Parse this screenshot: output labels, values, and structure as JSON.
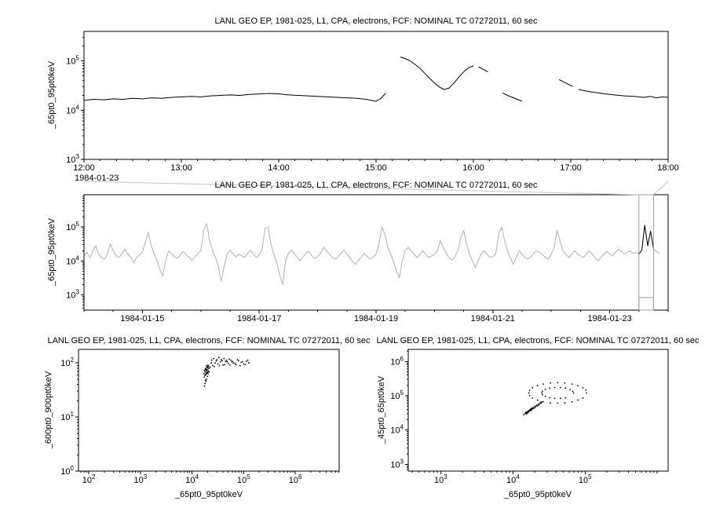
{
  "colors": {
    "background": "#ffffff",
    "axis": "#000000",
    "series_black": "#000000",
    "series_gray": "#b0b0b0",
    "connector_gray": "#c4c4c4",
    "selection_gray": "#9e9e9e"
  },
  "chart_data": [
    {
      "type": "line",
      "title": "LANL GEO EP, 1981-025, L1, CPA, electrons, FCF: NOMINAL TC 07272011, 60 sec",
      "ylabel": "_65pt0_95pt0keV",
      "context_label": "1984-01-23",
      "xlim": [
        12,
        18
      ],
      "ylim_log10": [
        3.0,
        5.6
      ],
      "yticks_log10": [
        3,
        4,
        5
      ],
      "xticks": [
        {
          "v": 12,
          "label": "12:00"
        },
        {
          "v": 13,
          "label": "13:00"
        },
        {
          "v": 14,
          "label": "14:00"
        },
        {
          "v": 15,
          "label": "15:00"
        },
        {
          "v": 16,
          "label": "16:00"
        },
        {
          "v": 17,
          "label": "17:00"
        },
        {
          "v": 18,
          "label": "18:00"
        }
      ],
      "segments": [
        [
          [
            12.0,
            4.2
          ],
          [
            12.1,
            4.22
          ],
          [
            12.2,
            4.21
          ],
          [
            12.3,
            4.23
          ],
          [
            12.4,
            4.22
          ],
          [
            12.5,
            4.24
          ],
          [
            12.6,
            4.23
          ],
          [
            12.7,
            4.25
          ],
          [
            12.8,
            4.24
          ],
          [
            12.9,
            4.26
          ],
          [
            13.0,
            4.27
          ],
          [
            13.1,
            4.28
          ],
          [
            13.2,
            4.27
          ],
          [
            13.3,
            4.29
          ],
          [
            13.4,
            4.3
          ],
          [
            13.5,
            4.31
          ],
          [
            13.6,
            4.3
          ],
          [
            13.7,
            4.32
          ],
          [
            13.8,
            4.33
          ],
          [
            13.9,
            4.34
          ],
          [
            14.0,
            4.33
          ],
          [
            14.1,
            4.31
          ],
          [
            14.2,
            4.3
          ],
          [
            14.3,
            4.29
          ],
          [
            14.4,
            4.28
          ],
          [
            14.5,
            4.27
          ],
          [
            14.6,
            4.26
          ],
          [
            14.7,
            4.25
          ],
          [
            14.8,
            4.24
          ],
          [
            14.9,
            4.22
          ],
          [
            14.95,
            4.2
          ],
          [
            15.0,
            4.18
          ],
          [
            15.05,
            4.24
          ],
          [
            15.1,
            4.35
          ]
        ],
        [
          [
            15.25,
            5.08
          ],
          [
            15.3,
            5.05
          ],
          [
            15.35,
            5.0
          ],
          [
            15.4,
            4.93
          ],
          [
            15.45,
            4.85
          ],
          [
            15.5,
            4.75
          ],
          [
            15.55,
            4.65
          ],
          [
            15.6,
            4.55
          ],
          [
            15.65,
            4.47
          ],
          [
            15.7,
            4.42
          ],
          [
            15.75,
            4.45
          ],
          [
            15.8,
            4.55
          ],
          [
            15.85,
            4.67
          ],
          [
            15.9,
            4.78
          ],
          [
            15.95,
            4.86
          ],
          [
            16.0,
            4.9
          ]
        ],
        [
          [
            16.05,
            4.88
          ],
          [
            16.1,
            4.83
          ],
          [
            16.15,
            4.78
          ]
        ],
        [
          [
            16.3,
            4.35
          ],
          [
            16.35,
            4.3
          ],
          [
            16.4,
            4.26
          ],
          [
            16.45,
            4.22
          ],
          [
            16.5,
            4.18
          ]
        ],
        [
          [
            16.88,
            4.62
          ],
          [
            16.95,
            4.55
          ],
          [
            17.02,
            4.48
          ]
        ],
        [
          [
            17.08,
            4.42
          ],
          [
            17.15,
            4.39
          ],
          [
            17.25,
            4.36
          ],
          [
            17.35,
            4.33
          ],
          [
            17.45,
            4.31
          ],
          [
            17.55,
            4.29
          ],
          [
            17.65,
            4.28
          ],
          [
            17.75,
            4.26
          ],
          [
            17.82,
            4.28
          ],
          [
            17.88,
            4.25
          ],
          [
            17.94,
            4.27
          ],
          [
            18.0,
            4.26
          ]
        ]
      ]
    },
    {
      "type": "line",
      "title": "LANL GEO EP, 1981-025, L1, CPA, electrons, FCF: NOMINAL TC 07272011, 60 sec",
      "ylabel": "_65pt0_95pt0keV",
      "xlim": [
        14,
        24
      ],
      "ylim_log10": [
        2.55,
        5.95
      ],
      "yticks_log10": [
        3,
        4,
        5
      ],
      "xticks": [
        {
          "v": 15,
          "label": "1984-01-15"
        },
        {
          "v": 17,
          "label": "1984-01-17"
        },
        {
          "v": 19,
          "label": "1984-01-19"
        },
        {
          "v": 21,
          "label": "1984-01-21"
        },
        {
          "v": 23,
          "label": "1984-01-23"
        }
      ],
      "highlight_range": [
        23.5,
        23.76
      ],
      "selection_box": [
        23.5,
        23.75
      ],
      "series_uniform": {
        "x0": 14.0,
        "dx": 0.05,
        "log10y": [
          4.15,
          4.25,
          4.1,
          4.3,
          4.45,
          4.2,
          4.1,
          4.05,
          4.2,
          4.5,
          4.3,
          4.15,
          4.1,
          4.22,
          4.35,
          4.2,
          4.12,
          3.95,
          4.1,
          4.18,
          4.25,
          4.55,
          4.85,
          4.45,
          4.2,
          4.0,
          3.75,
          3.55,
          4.05,
          4.3,
          4.2,
          4.12,
          4.08,
          4.18,
          4.28,
          4.18,
          4.1,
          4.02,
          4.12,
          4.22,
          4.3,
          4.9,
          5.1,
          4.6,
          4.3,
          4.1,
          3.85,
          3.4,
          3.85,
          4.2,
          4.32,
          4.22,
          4.12,
          4.2,
          4.15,
          4.1,
          4.22,
          4.32,
          4.2,
          4.1,
          4.18,
          4.35,
          4.95,
          5.0,
          4.5,
          4.2,
          3.95,
          3.6,
          3.3,
          4.0,
          4.22,
          4.32,
          4.22,
          4.1,
          4.0,
          4.12,
          4.22,
          4.28,
          4.15,
          4.08,
          4.12,
          4.22,
          4.4,
          4.3,
          4.2,
          4.1,
          4.05,
          4.12,
          4.22,
          4.32,
          4.2,
          4.1,
          3.98,
          3.9,
          4.02,
          4.12,
          4.22,
          4.12,
          4.05,
          4.12,
          4.2,
          4.5,
          5.0,
          4.8,
          4.4,
          4.2,
          3.98,
          3.7,
          3.5,
          4.02,
          4.3,
          4.4,
          4.3,
          4.2,
          4.1,
          4.2,
          4.3,
          4.2,
          4.1,
          4.15,
          4.18,
          4.3,
          4.6,
          4.4,
          4.22,
          4.1,
          4.02,
          4.12,
          4.3,
          4.7,
          4.9,
          4.5,
          4.2,
          4.0,
          3.8,
          4.02,
          4.2,
          4.3,
          4.2,
          4.1,
          4.12,
          4.22,
          4.8,
          5.0,
          4.6,
          4.3,
          4.1,
          3.9,
          4.1,
          4.3,
          4.2,
          4.1,
          4.05,
          4.12,
          4.22,
          4.3,
          4.25,
          4.18,
          4.1,
          4.05,
          4.2,
          4.4,
          4.9,
          4.6,
          4.3,
          4.2,
          4.1,
          4.2,
          4.3,
          4.2,
          4.15,
          4.1,
          4.2,
          4.3,
          4.2,
          4.1,
          4.0,
          4.1,
          4.2,
          4.28,
          4.2,
          4.15,
          4.25,
          4.35,
          4.28,
          4.2,
          4.25,
          4.3,
          4.22,
          4.25,
          4.2,
          4.32,
          5.05,
          4.45,
          4.88,
          4.35,
          4.28,
          4.22
        ]
      }
    },
    {
      "type": "scatter",
      "title": "LANL GEO EP, 1981-025, L1, CPA, electrons, FCF: NOMINAL TC 07272011, 60 sec",
      "xlabel": "_65pt0_95pt0keV",
      "ylabel": "_600pt0_900pt0keV",
      "xlim_log10": [
        1.8,
        6.85
      ],
      "ylim_log10": [
        0,
        2.25
      ],
      "xticks_log10": [
        2,
        3,
        4,
        5,
        6
      ],
      "yticks_log10": [
        0,
        1,
        2
      ],
      "points_log10": [
        [
          4.28,
          1.82
        ],
        [
          4.3,
          1.88
        ],
        [
          4.26,
          1.78
        ],
        [
          4.32,
          1.85
        ],
        [
          4.29,
          1.92
        ],
        [
          4.27,
          1.86
        ],
        [
          4.31,
          1.8
        ],
        [
          4.25,
          1.83
        ],
        [
          4.33,
          1.9
        ],
        [
          4.28,
          1.95
        ],
        [
          4.3,
          1.75
        ],
        [
          4.26,
          1.88
        ],
        [
          4.29,
          1.84
        ],
        [
          4.31,
          1.91
        ],
        [
          4.27,
          1.79
        ],
        [
          4.24,
          1.86
        ],
        [
          4.32,
          1.94
        ],
        [
          4.28,
          1.7
        ],
        [
          4.3,
          1.82
        ],
        [
          4.26,
          1.9
        ],
        [
          4.29,
          1.87
        ],
        [
          4.33,
          1.83
        ],
        [
          4.25,
          1.77
        ],
        [
          4.31,
          1.96
        ],
        [
          4.27,
          1.89
        ],
        [
          4.3,
          1.93
        ],
        [
          4.28,
          1.81
        ],
        [
          4.24,
          1.74
        ],
        [
          4.26,
          1.68
        ],
        [
          4.23,
          1.8
        ],
        [
          4.25,
          1.62
        ],
        [
          4.27,
          1.66
        ],
        [
          4.24,
          1.57
        ],
        [
          4.4,
          1.95
        ],
        [
          4.45,
          2.0
        ],
        [
          4.5,
          1.98
        ],
        [
          4.55,
          2.02
        ],
        [
          4.6,
          1.96
        ],
        [
          4.65,
          2.03
        ],
        [
          4.7,
          1.99
        ],
        [
          4.75,
          2.05
        ],
        [
          4.8,
          2.0
        ],
        [
          4.85,
          1.97
        ],
        [
          4.9,
          2.04
        ],
        [
          4.95,
          2.01
        ],
        [
          5.0,
          1.98
        ],
        [
          5.05,
          2.03
        ],
        [
          5.1,
          2.0
        ],
        [
          4.38,
          2.05
        ],
        [
          4.42,
          2.08
        ],
        [
          4.48,
          2.06
        ],
        [
          4.52,
          2.1
        ],
        [
          4.58,
          2.04
        ],
        [
          4.62,
          2.08
        ],
        [
          4.68,
          2.02
        ],
        [
          4.72,
          2.07
        ],
        [
          4.78,
          2.03
        ],
        [
          4.35,
          1.92
        ],
        [
          4.37,
          2.0
        ],
        [
          4.43,
          1.93
        ],
        [
          4.47,
          2.04
        ],
        [
          4.53,
          1.95
        ],
        [
          4.57,
          2.06
        ],
        [
          4.63,
          1.97
        ],
        [
          4.67,
          2.05
        ],
        [
          4.73,
          1.96
        ],
        [
          4.77,
          2.02
        ],
        [
          4.83,
          1.99
        ],
        [
          4.88,
          2.06
        ],
        [
          4.93,
          1.95
        ],
        [
          4.98,
          2.02
        ],
        [
          5.03,
          1.97
        ],
        [
          5.08,
          2.05
        ]
      ]
    },
    {
      "type": "scatter",
      "title": "LANL GEO EP, 1981-025, L1, CPA, electrons, FCF: NOMINAL TC 07272011, 60 sec",
      "xlabel": "_65pt0_95pt0keV",
      "ylabel": "_45pt0_65pt0keV",
      "xlim_log10": [
        2.55,
        6.15
      ],
      "ylim_log10": [
        2.8,
        6.35
      ],
      "xticks_log10": [
        3,
        4,
        5
      ],
      "yticks_log10": [
        3,
        4,
        5,
        6
      ],
      "points_log10": [
        [
          4.15,
          4.45
        ],
        [
          4.17,
          4.48
        ],
        [
          4.18,
          4.52
        ],
        [
          4.2,
          4.5
        ],
        [
          4.21,
          4.55
        ],
        [
          4.22,
          4.53
        ],
        [
          4.23,
          4.58
        ],
        [
          4.24,
          4.56
        ],
        [
          4.25,
          4.6
        ],
        [
          4.26,
          4.58
        ],
        [
          4.27,
          4.62
        ],
        [
          4.28,
          4.65
        ],
        [
          4.29,
          4.63
        ],
        [
          4.3,
          4.68
        ],
        [
          4.31,
          4.66
        ],
        [
          4.32,
          4.7
        ],
        [
          4.33,
          4.72
        ],
        [
          4.34,
          4.7
        ],
        [
          4.35,
          4.75
        ],
        [
          4.36,
          4.73
        ],
        [
          4.37,
          4.77
        ],
        [
          4.38,
          4.8
        ],
        [
          4.39,
          4.78
        ],
        [
          4.4,
          4.82
        ],
        [
          4.19,
          4.47
        ],
        [
          4.18,
          4.5
        ],
        [
          4.2,
          4.53
        ],
        [
          4.22,
          4.56
        ],
        [
          4.24,
          4.59
        ],
        [
          4.26,
          4.61
        ],
        [
          4.21,
          4.52
        ],
        [
          4.23,
          4.57
        ],
        [
          4.25,
          4.62
        ],
        [
          4.19,
          4.49
        ],
        [
          4.27,
          4.64
        ],
        [
          5.02,
          5.08
        ],
        [
          5.01,
          5.16
        ],
        [
          4.97,
          5.23
        ],
        [
          4.9,
          5.29
        ],
        [
          4.82,
          5.34
        ],
        [
          4.72,
          5.37
        ],
        [
          4.62,
          5.38
        ],
        [
          4.52,
          5.37
        ],
        [
          4.42,
          5.34
        ],
        [
          4.34,
          5.29
        ],
        [
          4.27,
          5.23
        ],
        [
          4.23,
          5.16
        ],
        [
          4.22,
          5.08
        ],
        [
          4.23,
          5.0
        ],
        [
          4.27,
          4.93
        ],
        [
          4.34,
          4.87
        ],
        [
          4.42,
          4.82
        ],
        [
          4.52,
          4.79
        ],
        [
          4.62,
          4.78
        ],
        [
          4.72,
          4.79
        ],
        [
          4.82,
          4.82
        ],
        [
          4.9,
          4.87
        ],
        [
          4.97,
          4.93
        ],
        [
          4.84,
          5.08
        ],
        [
          4.83,
          5.13
        ],
        [
          4.79,
          5.18
        ],
        [
          4.73,
          5.22
        ],
        [
          4.66,
          5.24
        ],
        [
          4.58,
          5.24
        ],
        [
          4.51,
          5.22
        ],
        [
          4.45,
          5.18
        ],
        [
          4.41,
          5.13
        ],
        [
          4.4,
          5.08
        ],
        [
          4.41,
          5.03
        ],
        [
          4.45,
          4.98
        ],
        [
          4.51,
          4.94
        ],
        [
          4.58,
          4.92
        ],
        [
          4.66,
          4.92
        ],
        [
          4.73,
          4.94
        ]
      ]
    }
  ]
}
